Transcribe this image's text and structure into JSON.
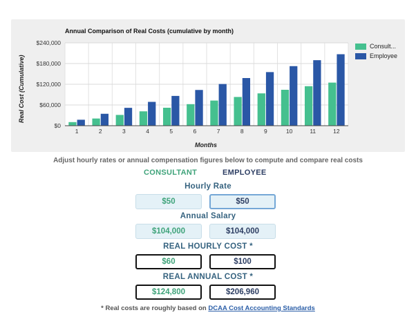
{
  "colors": {
    "consultant": "#45c08f",
    "employee": "#2a57a6",
    "section_label": "#35627f"
  },
  "chart_data": {
    "type": "bar",
    "title": "Annual Comparison of Real Costs (cumulative by month)",
    "xlabel": "Months",
    "ylabel": "Real Cost (Cumulative)",
    "categories": [
      "1",
      "2",
      "3",
      "4",
      "5",
      "6",
      "7",
      "8",
      "9",
      "10",
      "11",
      "12"
    ],
    "series": [
      {
        "name": "Consult...",
        "values": [
          10400,
          20800,
          31200,
          41600,
          52000,
          62400,
          72800,
          83200,
          93600,
          104000,
          114400,
          124800
        ]
      },
      {
        "name": "Employee",
        "values": [
          17247,
          34493,
          51740,
          68987,
          86233,
          103480,
          120727,
          137973,
          155220,
          172467,
          189713,
          206960
        ]
      }
    ],
    "ylim": [
      0,
      240000
    ],
    "yticks": [
      "$0",
      "$60,000",
      "$120,000",
      "$180,000",
      "$240,000"
    ],
    "grid": true,
    "legend": "right"
  },
  "instructions": "Adjust hourly rates or annual compensation figures below to compute and compare real costs",
  "columns": {
    "consultant": "CONSULTANT",
    "employee": "EMPLOYEE"
  },
  "hourly_rate": {
    "label": "Hourly Rate",
    "consultant": "$50",
    "employee": "$50"
  },
  "annual_salary": {
    "label": "Annual Salary",
    "consultant": "$104,000",
    "employee": "$104,000"
  },
  "real_hourly_cost": {
    "label": "REAL HOURLY COST *",
    "consultant": "$60",
    "employee": "$100"
  },
  "real_annual_cost": {
    "label": "REAL ANNUAL COST *",
    "consultant": "$124,800",
    "employee": "$206,960"
  },
  "footnote": {
    "text": "* Real costs are roughly based on ",
    "link": "DCAA Cost Accounting Standards"
  }
}
